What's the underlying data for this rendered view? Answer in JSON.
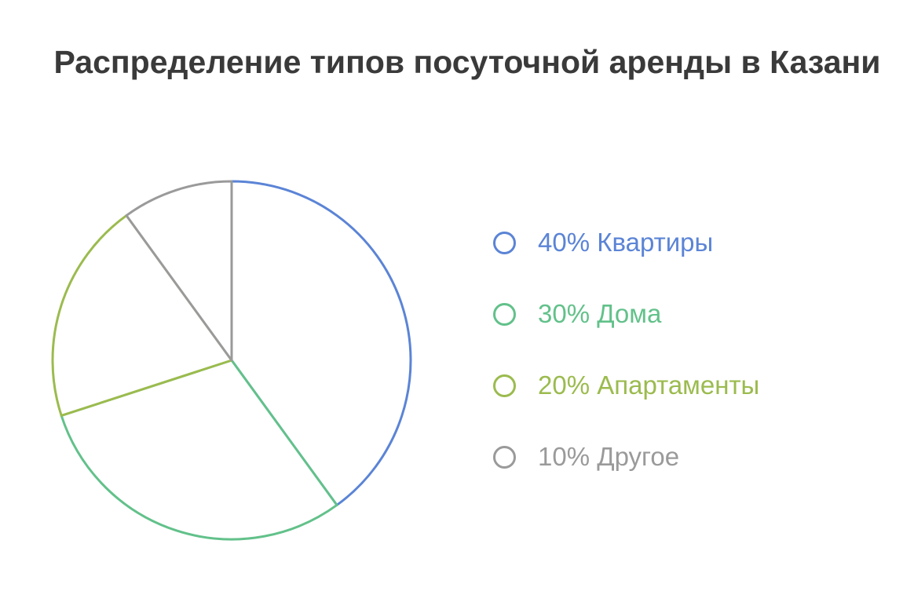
{
  "chart_data": {
    "type": "pie",
    "title": "Распределение типов посуточной аренды в Казани",
    "legend_position": "right",
    "slices": [
      {
        "label": "40% Квартиры",
        "value": 40,
        "color": "#5b84d6"
      },
      {
        "label": "30% Дома",
        "value": 30,
        "color": "#62c18a"
      },
      {
        "label": "20% Апартаменты",
        "value": 20,
        "color": "#9bbb4e"
      },
      {
        "label": "10% Другое",
        "value": 10,
        "color": "#9a9a9a"
      }
    ]
  }
}
